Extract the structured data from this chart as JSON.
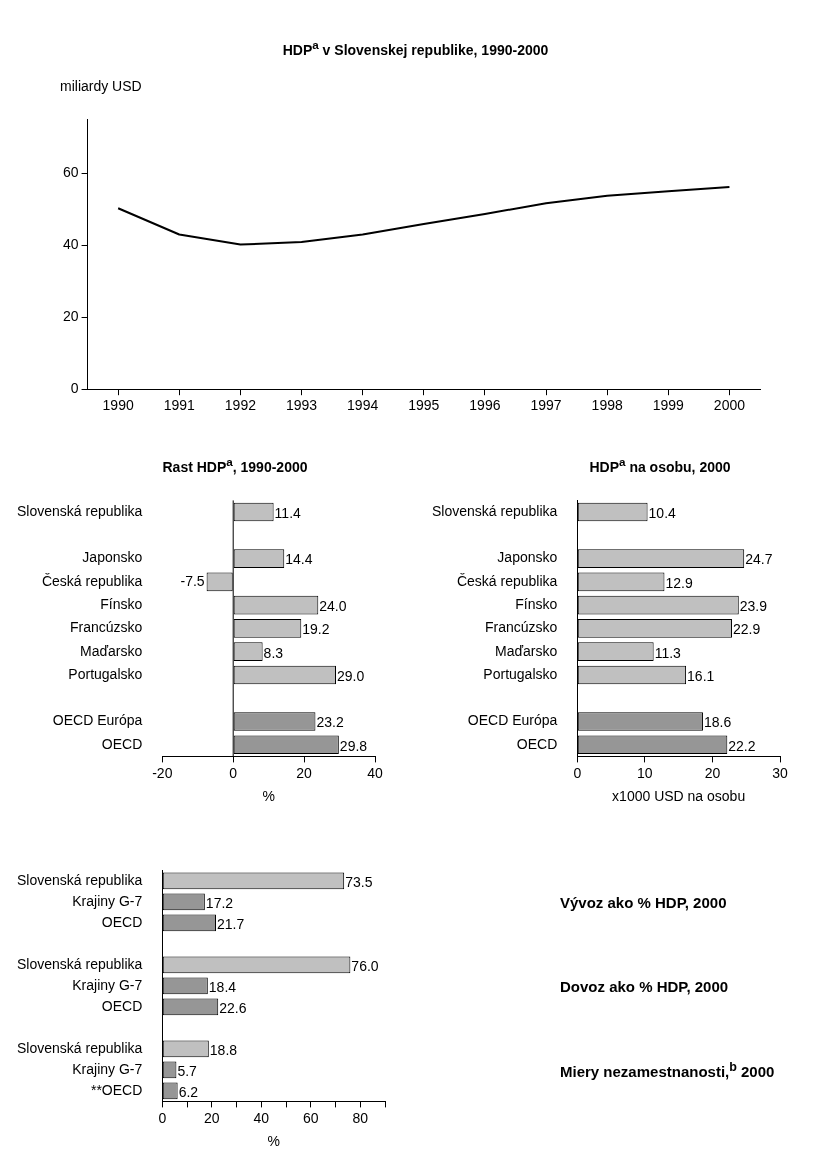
{
  "chart_data": [
    {
      "type": "line",
      "title": "HDP$^{a}$ v Slovenskej republike, 1990-2000",
      "ylabel": "miliardy USD",
      "categories": [
        "1990",
        "1991",
        "1992",
        "1993",
        "1994",
        "1995",
        "1996",
        "1997",
        "1998",
        "1999",
        "2000"
      ],
      "values": [
        50.3,
        43.0,
        40.2,
        40.9,
        43.0,
        45.9,
        48.7,
        51.7,
        53.8,
        55.0,
        56.2
      ],
      "color": "#000000",
      "ylim": [
        0,
        75
      ],
      "yticks": [
        0,
        20,
        40,
        60
      ],
      "grid": false,
      "legend": false,
      "marker": "none"
    },
    {
      "type": "bar",
      "orientation": "horizontal",
      "title": "Rast HDP$^{a}$, 1990-2000",
      "xlabel": "%",
      "categories": [
        "Slovenská republika",
        null,
        "Japonsko",
        "Česká republika",
        "Fínsko",
        "Francúzsko",
        "Maďarsko",
        "Portugalsko",
        null,
        "OECD Európa",
        "OECD"
      ],
      "values": [
        11.4,
        null,
        14.4,
        -7.5,
        24.0,
        19.2,
        8.3,
        29.0,
        null,
        23.2,
        29.8
      ],
      "value_labels": [
        "11.4",
        null,
        "14.4",
        "-7.5",
        "24.0",
        "19.2",
        "8.3",
        "29.0",
        null,
        "23.2",
        "29.8"
      ],
      "colors": [
        "#c0c0c0",
        null,
        "#c0c0c0",
        "#c0c0c0",
        "#c0c0c0",
        "#c0c0c0",
        "#c0c0c0",
        "#c0c0c0",
        null,
        "#969696",
        "#969696"
      ],
      "xlim": [
        -20,
        40
      ],
      "xticks": [
        -20,
        0,
        20,
        40
      ],
      "grid": false,
      "legend": false,
      "ref_lines": [
        {
          "axis": "x",
          "value": 0
        }
      ]
    },
    {
      "type": "bar",
      "orientation": "horizontal",
      "title": "HDP$^{a}$ na osobu, 2000",
      "xlabel": "x1000 USD na osobu",
      "categories": [
        "Slovenská republika",
        null,
        "Japonsko",
        "Česká republika",
        "Fínsko",
        "Francúzsko",
        "Maďarsko",
        "Portugalsko",
        null,
        "OECD Európa",
        "OECD"
      ],
      "values": [
        10.4,
        null,
        24.7,
        12.9,
        23.9,
        22.9,
        11.3,
        16.1,
        null,
        18.6,
        22.2
      ],
      "value_labels": [
        "10.4",
        null,
        "24.7",
        "12.9",
        "23.9",
        "22.9",
        "11.3",
        "16.1",
        null,
        "18.6",
        "22.2"
      ],
      "colors": [
        "#c0c0c0",
        null,
        "#c0c0c0",
        "#c0c0c0",
        "#c0c0c0",
        "#c0c0c0",
        "#c0c0c0",
        "#c0c0c0",
        null,
        "#969696",
        "#969696"
      ],
      "xlim": [
        0,
        30
      ],
      "xticks": [
        0,
        10,
        20,
        30
      ],
      "grid": false,
      "legend": false
    },
    {
      "type": "bar",
      "orientation": "horizontal",
      "xlabel": "%",
      "categories": [
        "Slovenská republika",
        "Krajiny G-7",
        "OECD",
        null,
        "Slovenská republika",
        "Krajiny G-7",
        "OECD",
        null,
        "Slovenská republika",
        "Krajiny G-7",
        "**OECD"
      ],
      "values": [
        73.5,
        17.2,
        21.7,
        null,
        76.0,
        18.4,
        22.6,
        null,
        18.8,
        5.7,
        6.2
      ],
      "value_labels": [
        "73.5",
        "17.2",
        "21.7",
        null,
        "76.0",
        "18.4",
        "22.6",
        null,
        "18.8",
        "5.7",
        "6.2"
      ],
      "colors": [
        "#c0c0c0",
        "#969696",
        "#969696",
        null,
        "#c0c0c0",
        "#969696",
        "#969696",
        null,
        "#c0c0c0",
        "#969696",
        "#969696"
      ],
      "xlim": [
        0,
        90
      ],
      "xticks": [
        0,
        {
          "value": 10,
          "label": null
        },
        20,
        {
          "value": 30,
          "label": null
        },
        40,
        {
          "value": 50,
          "label": null
        },
        60,
        {
          "value": 70,
          "label": null
        },
        80,
        {
          "value": 90,
          "label": null
        }
      ],
      "grid": false,
      "legend": false,
      "annotations": [
        "Vývoz ako % HDP, 2000",
        "Dovoz ako % HDP, 2000",
        "Miery nezamestnanosti,$^{b}$ 2000"
      ]
    }
  ]
}
